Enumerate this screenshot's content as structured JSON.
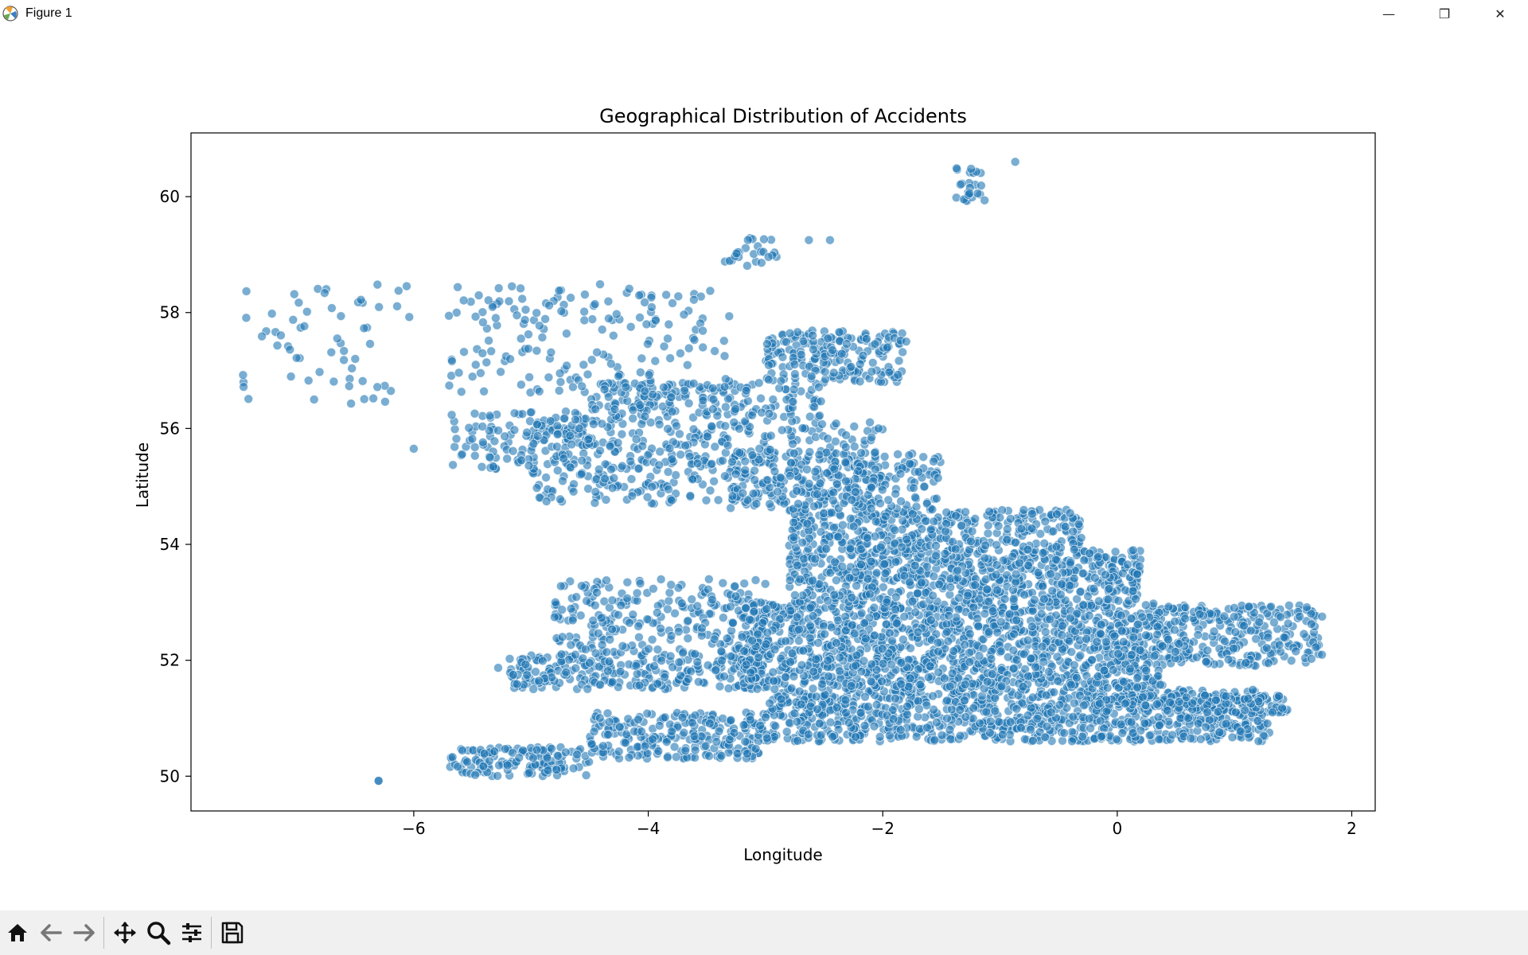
{
  "window": {
    "title": "Figure 1",
    "controls": {
      "minimize": "—",
      "restore": "❐",
      "close": "✕"
    }
  },
  "toolbar": {
    "icons": [
      "home-icon",
      "back-arrow-icon",
      "forward-arrow-icon",
      "pan-icon",
      "zoom-icon",
      "configure-subplots-icon",
      "save-icon"
    ]
  },
  "colors": {
    "marker": "#1f77b4",
    "marker_edge": "#ffffff",
    "axes": "#000000",
    "toolbar_bg": "#f0f0f0"
  },
  "chart_data": {
    "type": "scatter",
    "title": "Geographical Distribution of Accidents",
    "xlabel": "Longitude",
    "ylabel": "Latitude",
    "xlim": [
      -7.9,
      2.2
    ],
    "ylim": [
      49.4,
      61.1
    ],
    "xticks": [
      -6,
      -4,
      -2,
      0,
      2
    ],
    "xtick_labels": [
      "−6",
      "−4",
      "−2",
      "0",
      "2"
    ],
    "yticks": [
      50,
      52,
      54,
      56,
      58,
      60
    ],
    "ytick_labels": [
      "50",
      "52",
      "54",
      "56",
      "58",
      "60"
    ],
    "grid": false,
    "legend": "none",
    "marker_alpha": 0.6,
    "regions": [
      {
        "lon": [
          -5.7,
          -4.5
        ],
        "lat": [
          50.0,
          50.5
        ],
        "n": 140
      },
      {
        "lon": [
          -4.5,
          -3.0
        ],
        "lat": [
          50.3,
          51.1
        ],
        "n": 240
      },
      {
        "lon": [
          -3.0,
          1.3
        ],
        "lat": [
          50.6,
          51.5
        ],
        "n": 900
      },
      {
        "lon": [
          -0.2,
          1.45
        ],
        "lat": [
          51.1,
          51.4
        ],
        "n": 160
      },
      {
        "lon": [
          0.3,
          1.75
        ],
        "lat": [
          51.9,
          52.95
        ],
        "n": 280
      },
      {
        "lon": [
          -5.2,
          -3.0
        ],
        "lat": [
          51.5,
          52.1
        ],
        "n": 260
      },
      {
        "lon": [
          -4.8,
          -3.0
        ],
        "lat": [
          52.1,
          53.4
        ],
        "n": 240
      },
      {
        "lon": [
          -3.2,
          0.4
        ],
        "lat": [
          51.5,
          53.0
        ],
        "n": 1300
      },
      {
        "lon": [
          -2.8,
          0.2
        ],
        "lat": [
          53.0,
          53.9
        ],
        "n": 620
      },
      {
        "lon": [
          -2.8,
          -0.3
        ],
        "lat": [
          53.9,
          54.6
        ],
        "n": 360
      },
      {
        "lon": [
          -3.3,
          -1.5
        ],
        "lat": [
          54.6,
          55.6
        ],
        "n": 240
      },
      {
        "lon": [
          -5.0,
          -2.0
        ],
        "lat": [
          54.7,
          56.2
        ],
        "n": 440
      },
      {
        "lon": [
          -5.7,
          -4.5
        ],
        "lat": [
          55.3,
          56.3
        ],
        "n": 110
      },
      {
        "lon": [
          -4.5,
          -2.5
        ],
        "lat": [
          56.2,
          56.8
        ],
        "n": 170
      },
      {
        "lon": [
          -3.0,
          -1.8
        ],
        "lat": [
          56.8,
          57.7
        ],
        "n": 190
      },
      {
        "lon": [
          -5.7,
          -3.3
        ],
        "lat": [
          56.6,
          58.5
        ],
        "n": 180
      },
      {
        "lon": [
          -7.5,
          -6.0
        ],
        "lat": [
          56.4,
          58.5
        ],
        "n": 60
      },
      {
        "lon": [
          -3.4,
          -2.9
        ],
        "lat": [
          58.8,
          59.3
        ],
        "n": 25
      },
      {
        "lon": [
          -1.4,
          -1.1
        ],
        "lat": [
          59.9,
          60.5
        ],
        "n": 25
      },
      {
        "lon": [
          -6.3,
          -6.3
        ],
        "lat": [
          49.92,
          49.92
        ],
        "n": 1
      }
    ],
    "points": [
      {
        "x": -0.87,
        "y": 60.6
      },
      {
        "x": -2.45,
        "y": 59.25
      },
      {
        "x": -2.63,
        "y": 59.25
      },
      {
        "x": -6.3,
        "y": 49.92
      },
      {
        "x": -6.85,
        "y": 56.5
      },
      {
        "x": -6.0,
        "y": 55.65
      },
      {
        "x": -5.35,
        "y": 55.5
      },
      {
        "x": -1.8,
        "y": 57.5
      },
      {
        "x": -5.28,
        "y": 51.87
      }
    ]
  }
}
